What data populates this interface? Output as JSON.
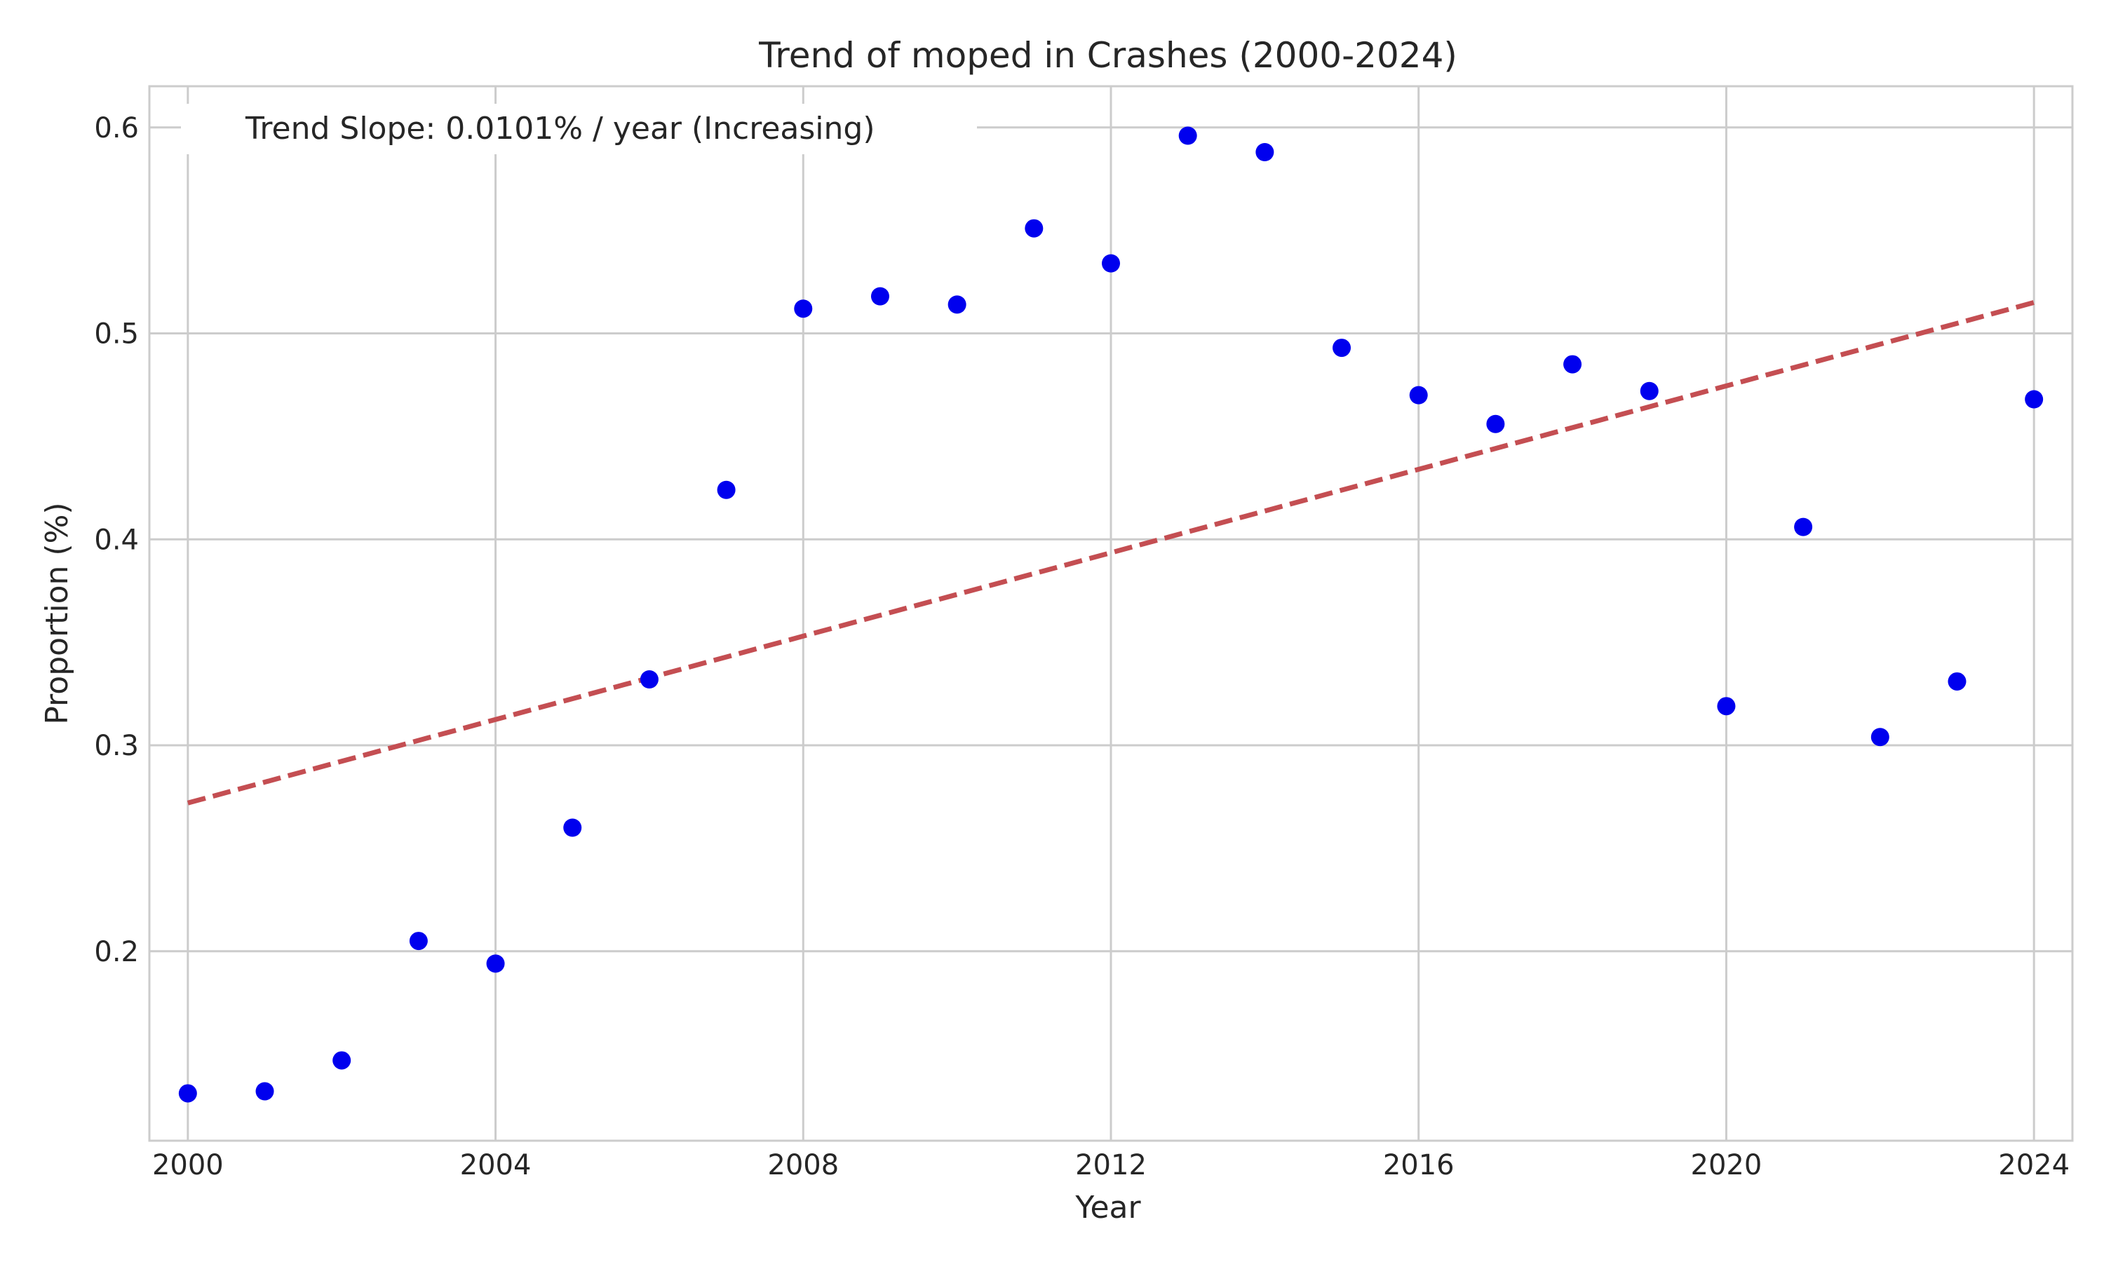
{
  "chart_data": {
    "type": "scatter",
    "title": "Trend of moped in Crashes (2000-2024)",
    "xlabel": "Year",
    "ylabel": "Proportion (%)",
    "xlim": [
      1999.5,
      2024.5
    ],
    "ylim": [
      0.108,
      0.62
    ],
    "xticks": [
      2000,
      2004,
      2008,
      2012,
      2016,
      2020,
      2024
    ],
    "yticks": [
      0.2,
      0.3,
      0.4,
      0.5,
      0.6
    ],
    "ytick_labels": [
      "0.2",
      "0.3",
      "0.4",
      "0.5",
      "0.6"
    ],
    "grid": true,
    "legend_position": "upper-left",
    "series": [
      {
        "kind": "scatter",
        "color": "#0000ee",
        "x": [
          2000,
          2001,
          2002,
          2003,
          2004,
          2005,
          2006,
          2007,
          2008,
          2009,
          2010,
          2011,
          2012,
          2013,
          2014,
          2015,
          2016,
          2017,
          2018,
          2019,
          2020,
          2021,
          2022,
          2023,
          2024
        ],
        "y": [
          0.131,
          0.132,
          0.147,
          0.205,
          0.194,
          0.26,
          0.332,
          0.424,
          0.512,
          0.518,
          0.514,
          0.551,
          0.534,
          0.596,
          0.588,
          0.493,
          0.47,
          0.456,
          0.485,
          0.472,
          0.319,
          0.406,
          0.304,
          0.331,
          0.468
        ]
      },
      {
        "kind": "line",
        "name": "Trend Slope: 0.0101% / year (Increasing)",
        "color": "#c44e52",
        "style": "dashed",
        "x": [
          2000,
          2024
        ],
        "y": [
          0.272,
          0.515
        ]
      }
    ]
  }
}
